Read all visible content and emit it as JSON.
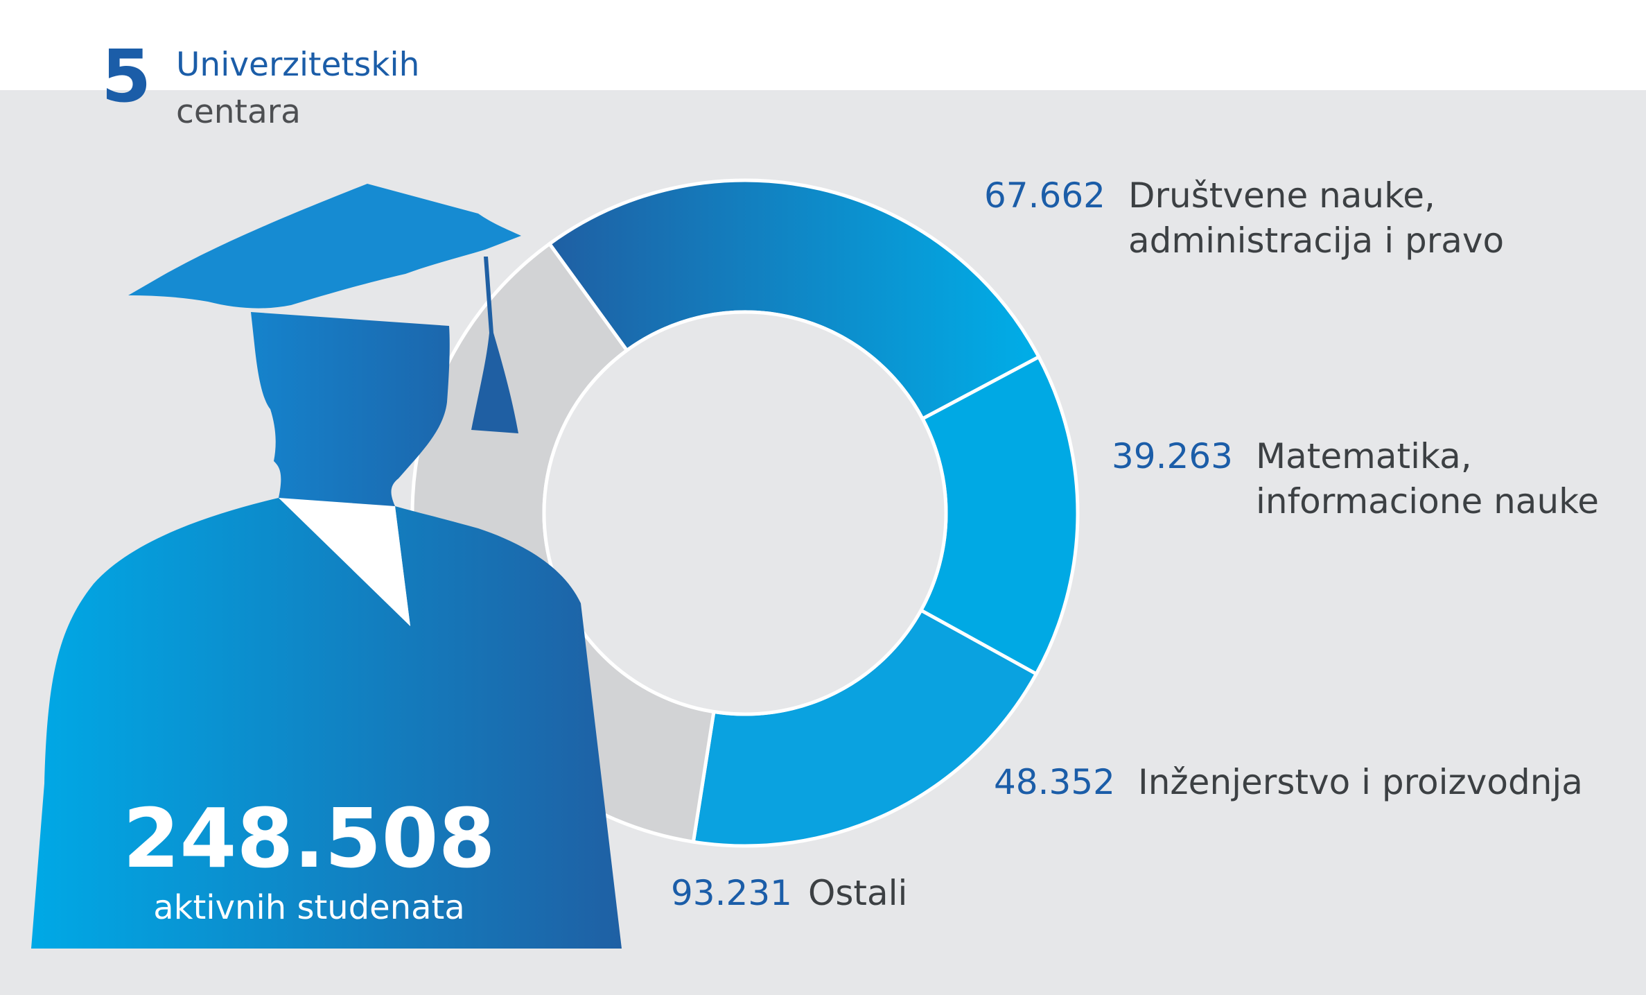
{
  "header": {
    "number": "5",
    "line1": "Univerzitetskih",
    "line2": "centara"
  },
  "total": {
    "value": "248.508",
    "label": "aktivnih studenata"
  },
  "chart_data": {
    "type": "pie",
    "categories": [
      "Društvene nauke, administracija i pravo",
      "Matematika, informacione nauke",
      "Inženjerstvo i proizvodnja",
      "Ostali"
    ],
    "values": [
      67662,
      39263,
      48352,
      93231
    ],
    "value_labels": [
      "67.662",
      "39.263",
      "48.352",
      "93.231"
    ],
    "text_lines": [
      [
        "Društvene nauke,",
        "administracija i pravo"
      ],
      [
        "Matematika,",
        "informacione nauke"
      ],
      [
        "Inženjerstvo i proizvodnja"
      ],
      [
        "Ostali"
      ]
    ],
    "colors": [
      "#1e6db4",
      "#00a9e4",
      "#0aa2e0",
      "#d2d3d5"
    ],
    "title": ""
  }
}
